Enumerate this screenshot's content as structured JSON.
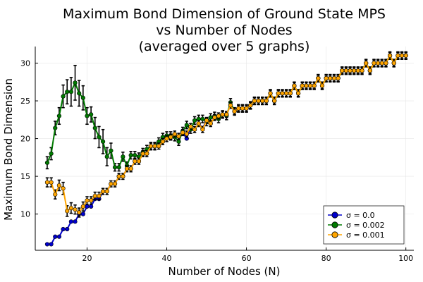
{
  "chart_data": {
    "type": "line",
    "title_lines": [
      "Maximum Bond Dimension of Ground State MPS",
      "vs Number of Nodes",
      "(averaged over 5 graphs)"
    ],
    "xlabel": "Number of Nodes (N)",
    "ylabel": "Maximum Bond Dimension",
    "xlim": [
      7,
      102
    ],
    "ylim": [
      5.2,
      32.2
    ],
    "xticks": [
      20,
      40,
      60,
      80,
      100
    ],
    "yticks": [
      10,
      15,
      20,
      25,
      30
    ],
    "grid": true,
    "legend_position": "bottom-right",
    "series": [
      {
        "name": "σ = 0.0",
        "color": "#0000cc",
        "x": [
          10,
          11,
          12,
          13,
          14,
          15,
          16,
          17,
          18,
          19,
          20,
          21,
          22,
          23,
          24,
          25,
          26,
          27,
          28,
          29,
          30,
          31,
          32,
          33,
          34,
          35,
          36,
          37,
          38,
          39,
          40,
          41,
          42,
          43,
          44,
          45,
          46,
          47,
          48,
          49,
          50,
          51,
          52,
          53,
          54,
          55,
          56,
          57,
          58,
          59,
          60,
          61,
          62,
          63,
          64,
          65,
          66,
          67,
          68,
          69,
          70,
          71,
          72,
          73,
          74,
          75,
          76,
          77,
          78,
          79,
          80,
          81,
          82,
          83,
          84,
          85,
          86,
          87,
          88,
          89,
          90,
          91,
          92,
          93,
          94,
          95,
          96,
          97,
          98,
          99,
          100
        ],
        "y": [
          6,
          6,
          7,
          7,
          8,
          8,
          9,
          9,
          10,
          10,
          11,
          11,
          12,
          12,
          13,
          13,
          14,
          14,
          15,
          15,
          16,
          16,
          17,
          17,
          18,
          18,
          19,
          19,
          19,
          19.6,
          20,
          20.2,
          20.6,
          20.3,
          20.8,
          20,
          21.6,
          21.2,
          22,
          21.4,
          22.4,
          22,
          22.8,
          23,
          23.2,
          23.2,
          24.4,
          23.6,
          24,
          24,
          24,
          24.4,
          25,
          25,
          25,
          25,
          26,
          25,
          26,
          26,
          26,
          26,
          27,
          26,
          27,
          27,
          27,
          27,
          28,
          27,
          28,
          28,
          28,
          28,
          29,
          29,
          29,
          29,
          29,
          29,
          30,
          29,
          30,
          30,
          30,
          30,
          31,
          30,
          31,
          31,
          31
        ]
      },
      {
        "name": "σ = 0.002",
        "color": "#007a00",
        "x": [
          10,
          11,
          12,
          13,
          14,
          15,
          16,
          17,
          18,
          19,
          20,
          21,
          22,
          23,
          24,
          25,
          26,
          27,
          28,
          29,
          30,
          31,
          32,
          33,
          34,
          35,
          36,
          37,
          38,
          39,
          40,
          41,
          42,
          43,
          44,
          45,
          46,
          47,
          48,
          49,
          50,
          51,
          52,
          53,
          54,
          55,
          56,
          57,
          58,
          59,
          60,
          61,
          62,
          63,
          64,
          65,
          66,
          67,
          68,
          69,
          70,
          71,
          72,
          73,
          74,
          75,
          76,
          77,
          78,
          79,
          80,
          81,
          82,
          83,
          84,
          85,
          86,
          87,
          88,
          89,
          90,
          91,
          92,
          93,
          94,
          95,
          96,
          97,
          98,
          99,
          100
        ],
        "y": [
          16.8,
          18,
          21.4,
          23,
          25.6,
          26.2,
          26.2,
          27.4,
          26,
          25.4,
          23,
          23.2,
          21.4,
          20.2,
          19.6,
          17.6,
          18.4,
          16.2,
          16.2,
          17.6,
          16.4,
          17.8,
          17.8,
          17.6,
          18.2,
          18.6,
          19,
          19,
          19.6,
          20.2,
          20.4,
          20.4,
          20.2,
          19.6,
          21,
          21.8,
          21.2,
          22.4,
          22.6,
          22.6,
          22.2,
          22.8,
          23,
          22.6,
          23.2,
          23,
          24.8,
          23.6,
          24,
          24,
          24,
          24.4,
          25,
          25,
          25,
          25,
          26,
          25,
          26,
          26,
          26,
          26,
          27,
          26,
          27,
          27,
          27,
          27,
          28,
          27,
          28,
          28,
          28,
          28,
          29,
          29,
          29,
          29,
          29,
          29,
          30,
          29,
          30,
          30,
          30,
          30,
          31,
          30,
          31,
          31,
          31
        ],
        "error": [
          0.8,
          0.8,
          0.9,
          1.1,
          1.5,
          1.6,
          1.9,
          2.3,
          1.7,
          1.6,
          1.1,
          1.0,
          1.4,
          1.4,
          1.6,
          1.2,
          1.0,
          0.5,
          0.5,
          0.6,
          0.5,
          0.5,
          0.5,
          0.5,
          0.5,
          0.5,
          0.5,
          0.5,
          0.5,
          0.5,
          0.5,
          0.5,
          0.5,
          0.5,
          0.5,
          0.5,
          0.5,
          0.5,
          0.5,
          0.5,
          0.5,
          0.5,
          0.5,
          0.5,
          0.5,
          0.5,
          0.5,
          0.5,
          0.5,
          0.5,
          0.5,
          0.5,
          0.5,
          0.5,
          0.5,
          0.5,
          0.5,
          0.5,
          0.5,
          0.5,
          0.5,
          0.5,
          0.5,
          0.5,
          0.5,
          0.5,
          0.5,
          0.5,
          0.5,
          0.5,
          0.5,
          0.5,
          0.5,
          0.5,
          0.5,
          0.5,
          0.5,
          0.5,
          0.5,
          0.5,
          0.5,
          0.5,
          0.5,
          0.5,
          0.5,
          0.5,
          0.5,
          0.5,
          0.5,
          0.5,
          0.5
        ]
      },
      {
        "name": "σ = 0.001",
        "color": "#ffa500",
        "x": [
          10,
          11,
          12,
          13,
          14,
          15,
          16,
          17,
          18,
          19,
          20,
          21,
          22,
          23,
          24,
          25,
          26,
          27,
          28,
          29,
          30,
          31,
          32,
          33,
          34,
          35,
          36,
          37,
          38,
          39,
          40,
          41,
          42,
          43,
          44,
          45,
          46,
          47,
          48,
          49,
          50,
          51,
          52,
          53,
          54,
          55,
          56,
          57,
          58,
          59,
          60,
          61,
          62,
          63,
          64,
          65,
          66,
          67,
          68,
          69,
          70,
          71,
          72,
          73,
          74,
          75,
          76,
          77,
          78,
          79,
          80,
          81,
          82,
          83,
          84,
          85,
          86,
          87,
          88,
          89,
          90,
          91,
          92,
          93,
          94,
          95,
          96,
          97,
          98,
          99,
          100
        ],
        "y": [
          14.2,
          14.2,
          12.6,
          13.8,
          13.4,
          10.4,
          10.8,
          10.6,
          10.2,
          11,
          11.8,
          11.8,
          12.4,
          12.4,
          13,
          13,
          14,
          14,
          15,
          15,
          16,
          16,
          17,
          17,
          18,
          18,
          19,
          19,
          19,
          19.6,
          20,
          20.2,
          20.6,
          20.3,
          20.8,
          20.6,
          21.6,
          21.2,
          22,
          21.2,
          22.4,
          22,
          22.8,
          23,
          23.2,
          23.2,
          24.4,
          23.6,
          24,
          24,
          24,
          24.4,
          25,
          25,
          25,
          25,
          26,
          25,
          26,
          26,
          26,
          26,
          27,
          26,
          27,
          27,
          27,
          27,
          28,
          27,
          28,
          28,
          28,
          28,
          29,
          29,
          29,
          29,
          29,
          29,
          30,
          29,
          30,
          30,
          30,
          30,
          31,
          30,
          31,
          31,
          31
        ],
        "error": [
          0.6,
          0.6,
          0.6,
          0.7,
          0.8,
          0.7,
          0.7,
          0.6,
          0.6,
          0.6,
          0.5,
          0.5,
          0.5,
          0.5,
          0.4,
          0.4,
          0.4,
          0.4,
          0.4,
          0.4,
          0.4,
          0.4,
          0.4,
          0.4,
          0.4,
          0.4,
          0.4,
          0.4,
          0.4,
          0.4,
          0.4,
          0.4,
          0.4,
          0.4,
          0.4,
          0.4,
          0.4,
          0.4,
          0.4,
          0.4,
          0.4,
          0.4,
          0.4,
          0.4,
          0.4,
          0.4,
          0.4,
          0.4,
          0.4,
          0.4,
          0.4,
          0.4,
          0.4,
          0.4,
          0.4,
          0.4,
          0.4,
          0.4,
          0.4,
          0.4,
          0.4,
          0.4,
          0.4,
          0.4,
          0.4,
          0.4,
          0.4,
          0.4,
          0.4,
          0.4,
          0.4,
          0.4,
          0.4,
          0.4,
          0.4,
          0.4,
          0.4,
          0.4,
          0.4,
          0.4,
          0.4,
          0.4,
          0.4,
          0.4,
          0.4,
          0.4,
          0.4,
          0.4,
          0.4,
          0.4,
          0.4
        ]
      }
    ]
  }
}
